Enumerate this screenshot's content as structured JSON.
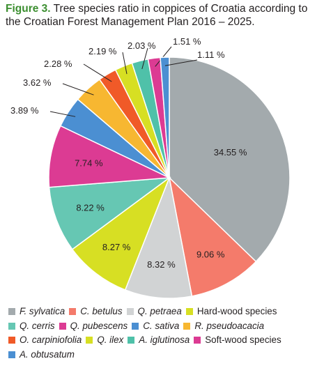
{
  "caption": {
    "figure_label": "Figure 3.",
    "text": " Tree species ratio in coppices of Croatia according to the Croatian Forest Management Plan 2016 – 2025."
  },
  "chart_data": {
    "type": "pie",
    "start": "12 o'clock",
    "direction": "clockwise",
    "slices": [
      {
        "label": "F. sylvatica",
        "italic": true,
        "value": 34.55,
        "text": "34.55 %",
        "color": "#a3aaad"
      },
      {
        "label": "C. betulus",
        "italic": true,
        "value": 9.06,
        "text": "9.06 %",
        "color": "#f47b6b"
      },
      {
        "label": "Q. petraea",
        "italic": true,
        "value": 8.32,
        "text": "8.32 %",
        "color": "#d1d3d4"
      },
      {
        "label": "Hard-wood species",
        "italic": false,
        "value": 8.27,
        "text": "8.27 %",
        "color": "#d7df23"
      },
      {
        "label": "Q. cerris",
        "italic": true,
        "value": 8.22,
        "text": "8.22 %",
        "color": "#66c7b3"
      },
      {
        "label": "Q. pubescens",
        "italic": true,
        "value": 7.74,
        "text": "7.74 %",
        "color": "#dc3b93"
      },
      {
        "label": "C. sativa",
        "italic": true,
        "value": 3.89,
        "text": "3.89 %",
        "color": "#4b8fd2"
      },
      {
        "label": "R. pseudoacacia",
        "italic": true,
        "value": 3.62,
        "text": "3.62 %",
        "color": "#f7b731"
      },
      {
        "label": "O. carpiniofolia",
        "italic": true,
        "value": 2.28,
        "text": "2.28 %",
        "color": "#f05a28"
      },
      {
        "label": "Q. ilex",
        "italic": true,
        "value": 2.19,
        "text": "2.19 %",
        "color": "#d7df23"
      },
      {
        "label": "A. iglutinosa",
        "italic": true,
        "value": 2.03,
        "text": "2.03 %",
        "color": "#4fc1a9"
      },
      {
        "label": "Soft-wood species",
        "italic": false,
        "value": 1.51,
        "text": "1.51 %",
        "color": "#dc3b93"
      },
      {
        "label": "A. obtusatum",
        "italic": true,
        "value": 1.11,
        "text": "1.11 %",
        "color": "#4b8fd2"
      }
    ],
    "legend_position": "bottom"
  }
}
